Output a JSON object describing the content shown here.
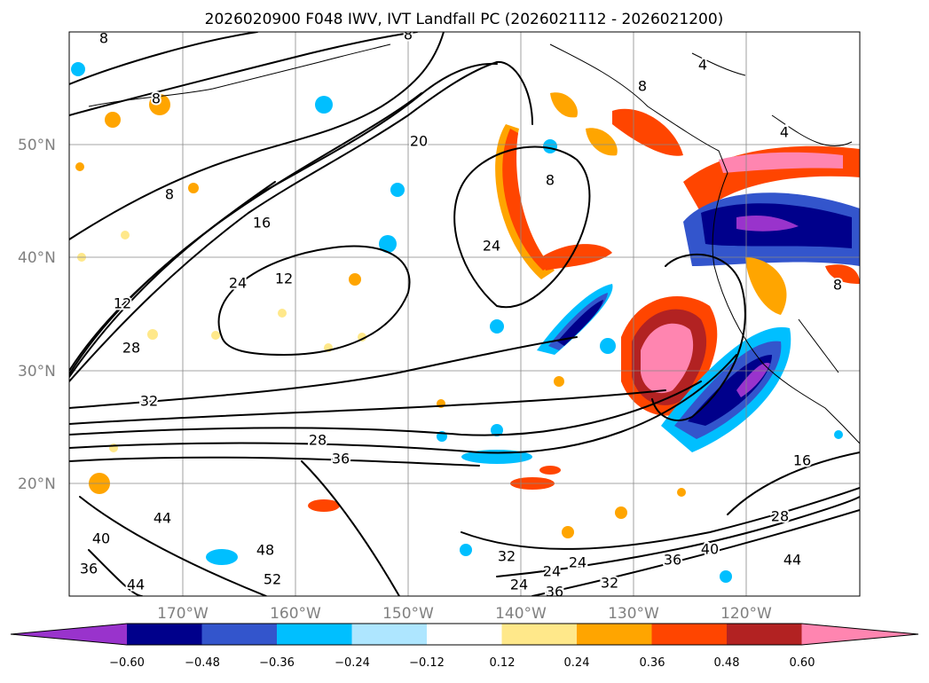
{
  "title": "2026020900 F048 IWV, IVT Landfall PC (2026021112 - 2026021200)",
  "map": {
    "lon_labels": [
      "170°W",
      "160°W",
      "150°W",
      "140°W",
      "130°W",
      "120°W"
    ],
    "lat_labels": [
      "50°N",
      "40°N",
      "30°N",
      "20°N"
    ],
    "contour_labels": [
      "8",
      "8",
      "8",
      "8",
      "4",
      "4",
      "8",
      "8",
      "20",
      "16",
      "12",
      "12",
      "24",
      "24",
      "28",
      "32",
      "28",
      "36",
      "44",
      "40",
      "36",
      "48",
      "52",
      "44",
      "32",
      "24",
      "24",
      "24",
      "36",
      "32",
      "36",
      "40",
      "28",
      "16",
      "44",
      "8"
    ]
  },
  "colorbar": {
    "ticks": [
      "−0.60",
      "−0.48",
      "−0.36",
      "−0.24",
      "−0.12",
      "0.12",
      "0.24",
      "0.36",
      "0.48",
      "0.60"
    ],
    "colors": [
      "#9933cc",
      "#00008b",
      "#3355cc",
      "#00bfff",
      "#aee6ff",
      "#ffffff",
      "#ffe88a",
      "#ffa500",
      "#ff4500",
      "#b22222",
      "#ff85b0"
    ]
  }
}
